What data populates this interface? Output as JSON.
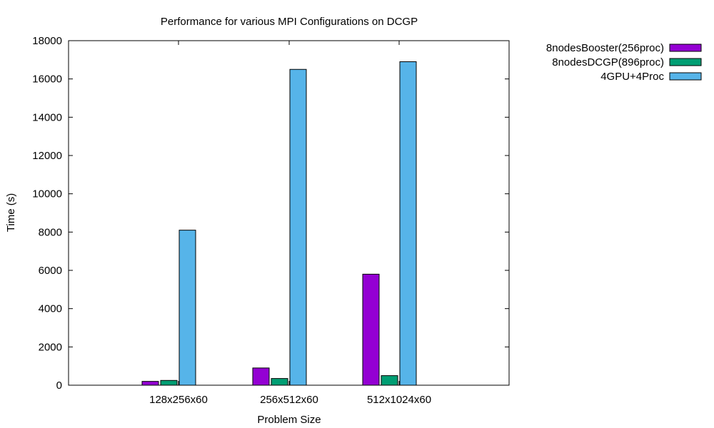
{
  "chart_data": {
    "type": "bar",
    "title": "Performance for various MPI Configurations on DCGP",
    "xlabel": "Problem Size",
    "ylabel": "Time (s)",
    "ylim": [
      0,
      18000
    ],
    "yticks": [
      0,
      2000,
      4000,
      6000,
      8000,
      10000,
      12000,
      14000,
      16000,
      18000
    ],
    "categories": [
      "128x256x60",
      "256x512x60",
      "512x1024x60"
    ],
    "legend_position": "outside-top-right",
    "grid": false,
    "series": [
      {
        "name": "8nodesBooster(256proc)",
        "color": "#9400d3",
        "values": [
          200,
          900,
          5800
        ]
      },
      {
        "name": "8nodesDCGP(896proc)",
        "color": "#009e73",
        "values": [
          250,
          350,
          500
        ]
      },
      {
        "name": "4GPU+4Proc",
        "color": "#56b4e9",
        "values": [
          8100,
          16500,
          16900
        ]
      }
    ]
  }
}
